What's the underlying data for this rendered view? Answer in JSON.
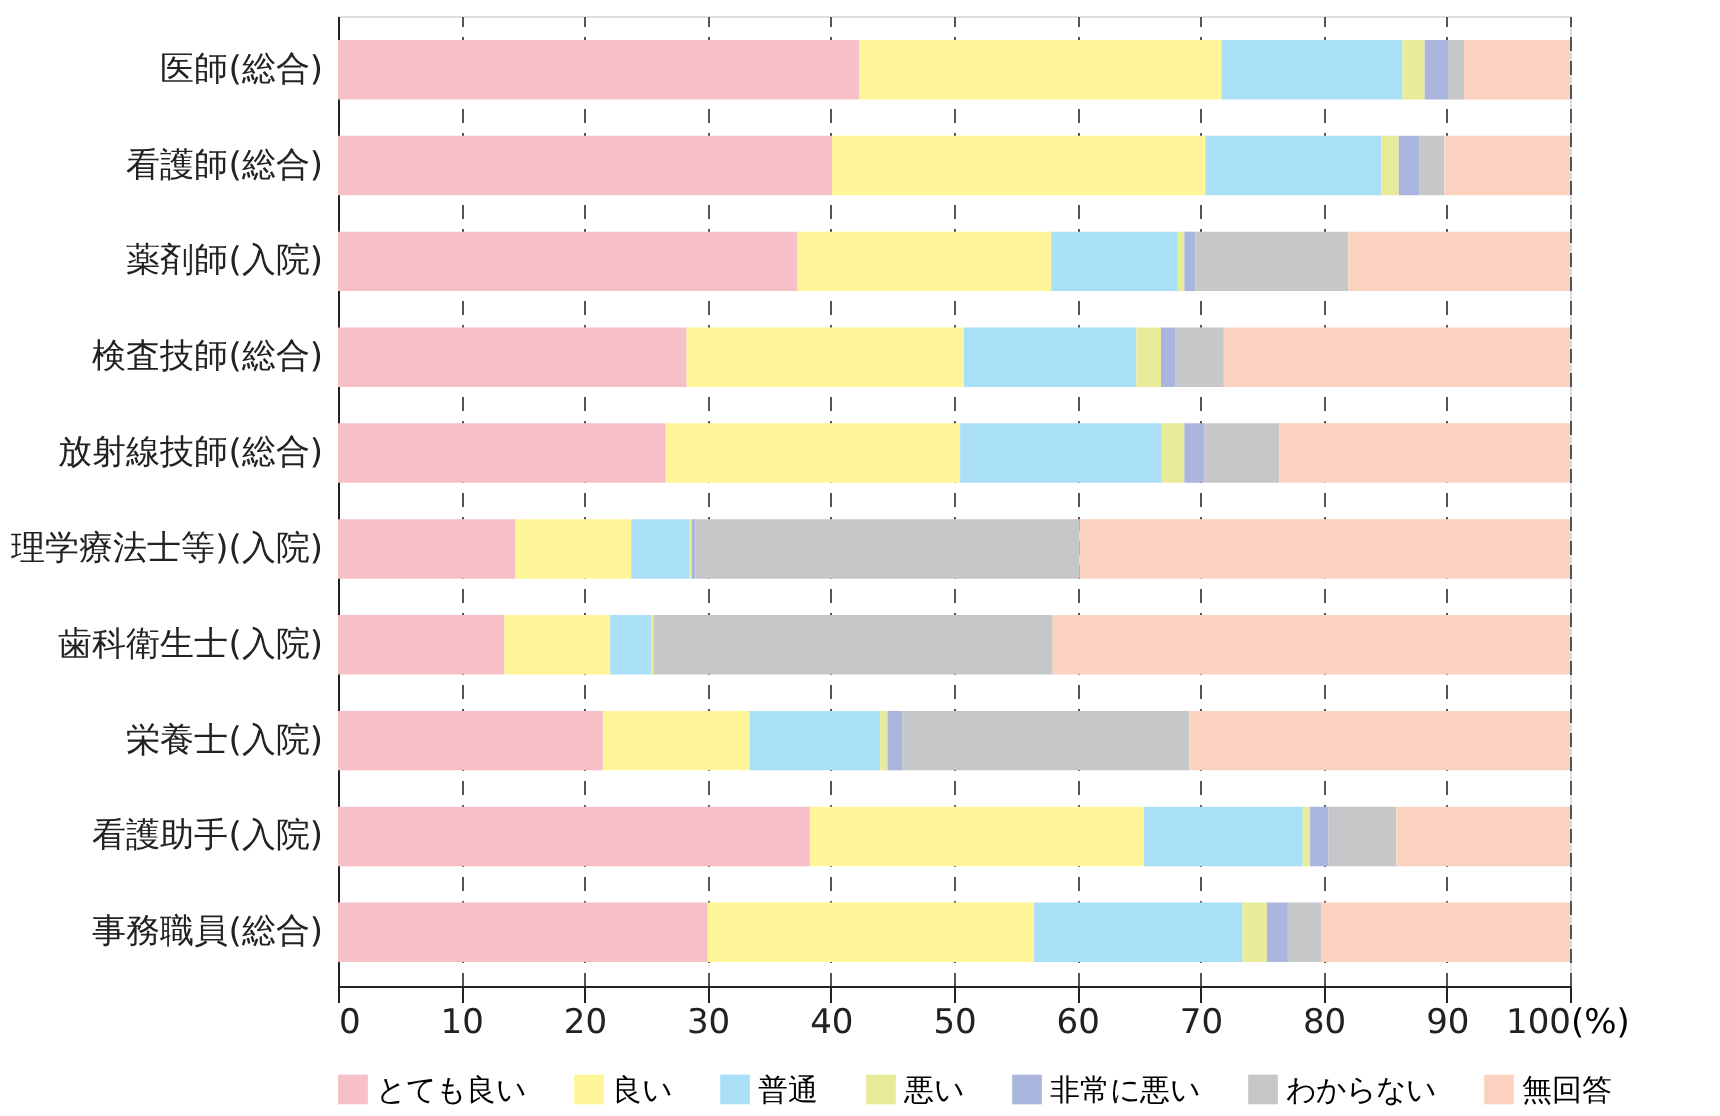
{
  "chart_data": {
    "type": "bar",
    "orientation": "horizontal",
    "stacked": true,
    "categories": [
      "医師(総合)",
      "看護師(総合)",
      "薬剤師(入院)",
      "検査技師(総合)",
      "放射線技師(総合)",
      "理学療法士等)(入院)",
      "歯科衛生士(入院)",
      "栄養士(入院)",
      "看護助手(入院)",
      "事務職員(総合)"
    ],
    "series": [
      {
        "name": "とても良い",
        "color": "#f7bfc7",
        "values": [
          42.3,
          40.1,
          37.3,
          28.3,
          26.6,
          14.4,
          13.5,
          21.5,
          38.3,
          30.0
        ]
      },
      {
        "name": "良い",
        "color": "#fff69a",
        "values": [
          29.4,
          30.3,
          20.6,
          22.5,
          23.9,
          9.4,
          8.6,
          11.9,
          27.1,
          26.5
        ]
      },
      {
        "name": "普通",
        "color": "#a9e0f8",
        "values": [
          14.7,
          14.3,
          10.2,
          14.0,
          16.3,
          4.7,
          3.3,
          10.6,
          12.9,
          16.9
        ]
      },
      {
        "name": "悪い",
        "color": "#e8eb9a",
        "values": [
          1.8,
          1.4,
          0.6,
          2.0,
          1.9,
          0.2,
          0.2,
          0.6,
          0.6,
          2.0
        ]
      },
      {
        "name": "非常に悪い",
        "color": "#aab6dd",
        "values": [
          1.9,
          1.7,
          0.9,
          1.2,
          1.6,
          0.3,
          0,
          1.2,
          1.5,
          1.7
        ]
      },
      {
        "name": "わからない",
        "color": "#c6c7c9",
        "values": [
          1.3,
          2.0,
          12.4,
          3.9,
          6.1,
          31.2,
          32.4,
          23.3,
          5.5,
          2.7
        ]
      },
      {
        "name": "無回答",
        "color": "#fbd2bf",
        "values": [
          8.6,
          10.2,
          18.0,
          28.1,
          23.6,
          39.8,
          42.0,
          30.9,
          14.1,
          20.2
        ]
      }
    ],
    "xlim": [
      0,
      100
    ],
    "xticks": [
      0,
      10,
      20,
      30,
      40,
      50,
      60,
      70,
      80,
      90,
      100
    ],
    "xlabel": "(%)",
    "grid": "x",
    "legend": "bottom"
  }
}
